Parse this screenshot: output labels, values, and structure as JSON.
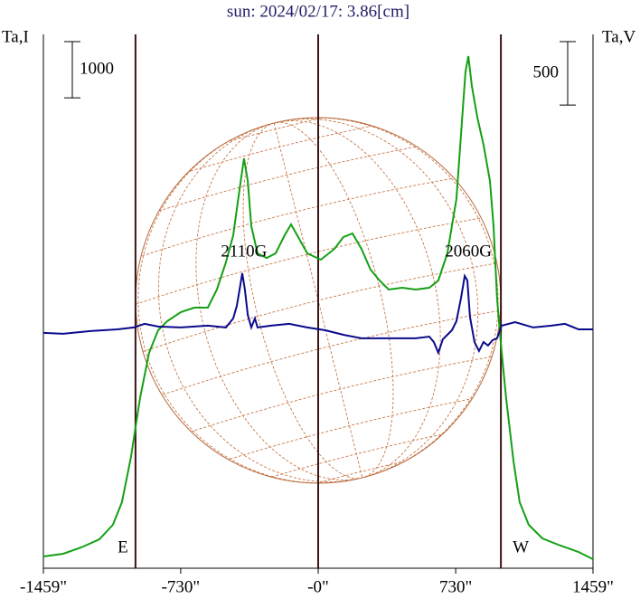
{
  "chart_data": {
    "type": "line",
    "title": "sun: 2024/02/17: 3.86[cm]",
    "ylabel": "Ta,I",
    "y2label": "Ta,V",
    "xlim": [
      -1459,
      1459
    ],
    "xticks": [
      {
        "value": -1459,
        "label": "-1459\""
      },
      {
        "value": -730,
        "label": "-730\""
      },
      {
        "value": 0,
        "label": "-0\""
      },
      {
        "value": 730,
        "label": "730\""
      },
      {
        "value": 1459,
        "label": "1459\""
      }
    ],
    "ylim": [
      0,
      9500
    ],
    "y2lim": [
      -1870,
      2340
    ],
    "vlines": [
      -970,
      0,
      970
    ],
    "limb_labels": [
      "E",
      "W"
    ],
    "scale_bars": [
      {
        "axis": "y",
        "value": 1000
      },
      {
        "axis": "y2",
        "value": 500
      }
    ],
    "annotations": [
      {
        "text": "2110G",
        "x": -394
      },
      {
        "text": "2060G",
        "x": 797
      }
    ],
    "series": [
      {
        "name": "I",
        "color": "#14a014",
        "x": [
          -1459,
          -1354,
          -1258,
          -1162,
          -1090,
          -1042,
          -994,
          -946,
          -898,
          -850,
          -802,
          -730,
          -658,
          -586,
          -538,
          -490,
          -451,
          -418,
          -394,
          -374,
          -355,
          -322,
          -274,
          -226,
          -178,
          -144,
          -106,
          -58,
          14,
          86,
          134,
          182,
          230,
          278,
          326,
          374,
          446,
          518,
          590,
          638,
          686,
          734,
          758,
          782,
          797,
          816,
          845,
          878,
          912,
          931,
          950,
          970,
          998,
          1037,
          1070,
          1118,
          1190,
          1286,
          1382,
          1459
        ],
        "values": [
          209,
          258,
          370,
          515,
          773,
          1175,
          1980,
          3027,
          3832,
          4234,
          4395,
          4556,
          4637,
          4637,
          4959,
          5442,
          5925,
          6730,
          7293,
          6891,
          6086,
          5603,
          5522,
          5603,
          5925,
          6118,
          5893,
          5603,
          5490,
          5683,
          5893,
          5957,
          5683,
          5313,
          5120,
          4959,
          4991,
          4959,
          4991,
          5120,
          5603,
          6569,
          7696,
          8823,
          9113,
          8581,
          8018,
          7535,
          6891,
          6086,
          4798,
          3993,
          3027,
          1900,
          1175,
          773,
          531,
          403,
          290,
          161
        ]
      },
      {
        "name": "V",
        "color": "#0a0a8c",
        "axis": "y2",
        "x": [
          -1459,
          -1354,
          -1210,
          -1066,
          -979,
          -922,
          -850,
          -730,
          -586,
          -490,
          -451,
          -432,
          -413,
          -403,
          -389,
          -374,
          -355,
          -336,
          -322,
          -250,
          -154,
          -58,
          38,
          134,
          230,
          326,
          422,
          518,
          590,
          614,
          638,
          662,
          686,
          710,
          734,
          758,
          778,
          792,
          806,
          830,
          854,
          878,
          902,
          926,
          950,
          974,
          1046,
          1142,
          1238,
          1310,
          1382,
          1459
        ],
        "values": [
          -14,
          -21,
          0,
          14,
          29,
          57,
          36,
          29,
          43,
          29,
          100,
          200,
          364,
          457,
          328,
          128,
          29,
          100,
          29,
          43,
          57,
          29,
          7,
          -29,
          -57,
          -57,
          -57,
          -57,
          -43,
          -86,
          -171,
          -64,
          -29,
          7,
          78,
          257,
          435,
          400,
          114,
          -86,
          -157,
          -86,
          -114,
          -71,
          -57,
          43,
          71,
          29,
          43,
          57,
          14,
          14
        ]
      }
    ]
  }
}
